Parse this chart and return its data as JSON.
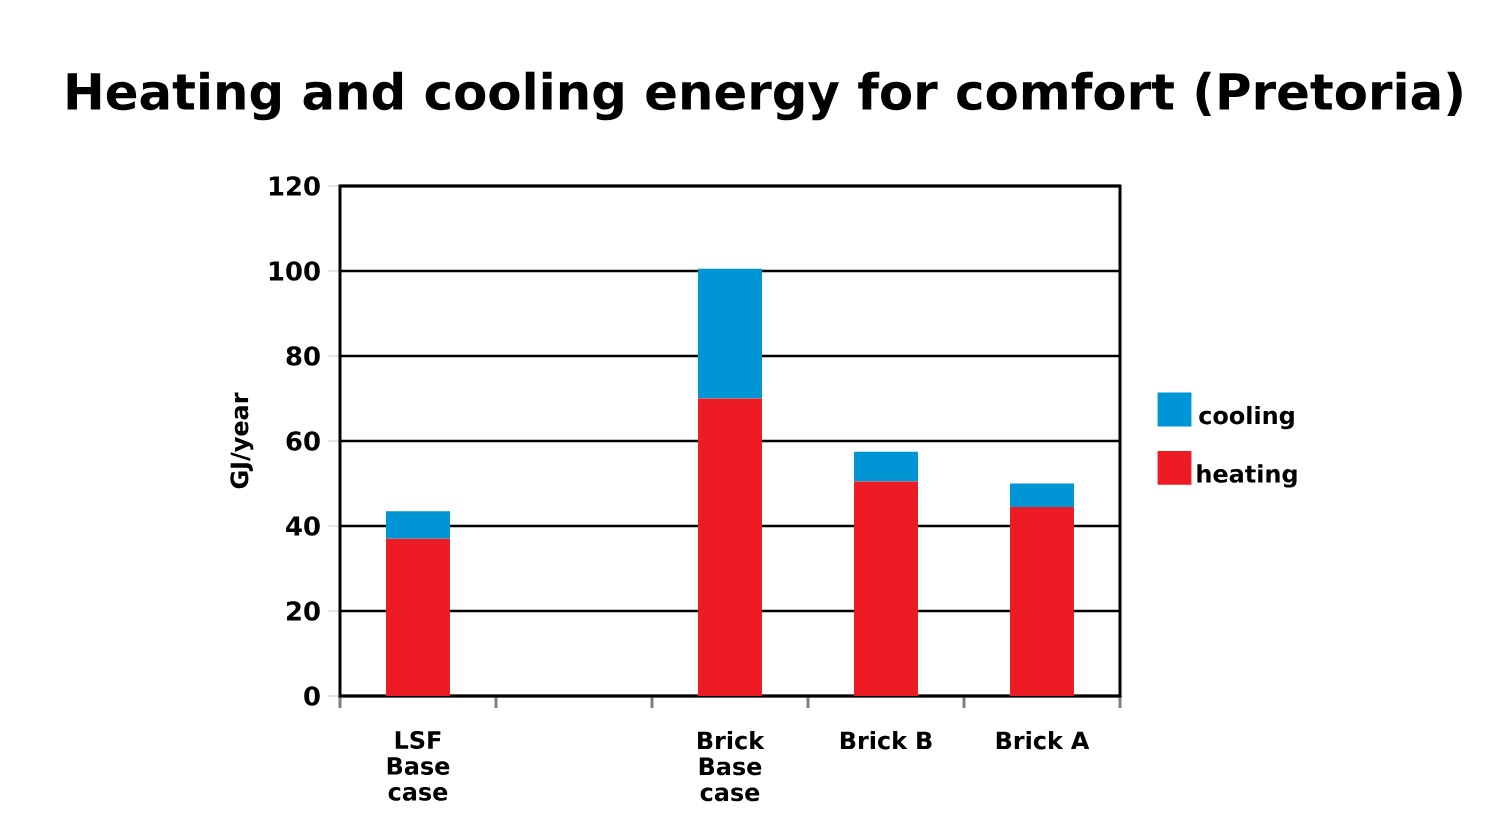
{
  "chart_data": {
    "type": "bar",
    "title": "Heating and cooling energy for comfort (Pretoria)",
    "ylabel": "GJ/year",
    "categories": [
      "LSF Base case",
      null,
      "Brick Base case",
      "Brick B",
      "Brick A"
    ],
    "series": [
      {
        "name": "heating",
        "color": "#ed1c24",
        "values": [
          37,
          null,
          70,
          50.5,
          44.5
        ]
      },
      {
        "name": "cooling",
        "color": "#0096d6",
        "values": [
          6.5,
          null,
          30.5,
          7,
          5.5
        ]
      }
    ],
    "stacked": true,
    "ylim": [
      0,
      120
    ],
    "yticks": [
      0,
      20,
      40,
      60,
      80,
      100,
      120
    ],
    "grid": "y",
    "legend": "right"
  }
}
